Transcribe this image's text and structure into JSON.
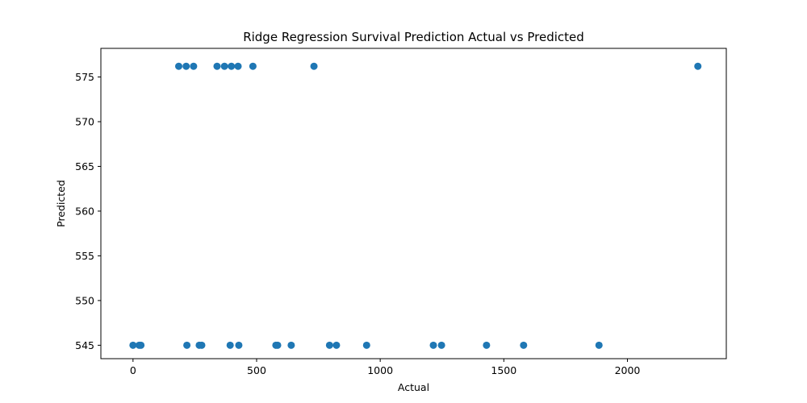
{
  "chart_data": {
    "type": "scatter",
    "title": "Ridge Regression Survival Prediction Actual vs Predicted",
    "xlabel": "Actual",
    "ylabel": "Predicted",
    "xlim": [
      -130,
      2400
    ],
    "ylim": [
      543.5,
      578.2
    ],
    "xticks": [
      0,
      500,
      1000,
      1500,
      2000
    ],
    "yticks": [
      545,
      550,
      555,
      560,
      565,
      570,
      575
    ],
    "grid": false,
    "marker_color": "#1f77b4",
    "points": [
      {
        "x": 185,
        "y": 576.2
      },
      {
        "x": 215,
        "y": 576.2
      },
      {
        "x": 245,
        "y": 576.2
      },
      {
        "x": 340,
        "y": 576.2
      },
      {
        "x": 370,
        "y": 576.2
      },
      {
        "x": 398,
        "y": 576.2
      },
      {
        "x": 425,
        "y": 576.2
      },
      {
        "x": 485,
        "y": 576.2
      },
      {
        "x": 732,
        "y": 576.2
      },
      {
        "x": 2285,
        "y": 576.2
      },
      {
        "x": 0,
        "y": 545.0
      },
      {
        "x": 25,
        "y": 545.0
      },
      {
        "x": 32,
        "y": 545.0
      },
      {
        "x": 218,
        "y": 545.0
      },
      {
        "x": 268,
        "y": 545.0
      },
      {
        "x": 278,
        "y": 545.0
      },
      {
        "x": 393,
        "y": 545.0
      },
      {
        "x": 428,
        "y": 545.0
      },
      {
        "x": 578,
        "y": 545.0
      },
      {
        "x": 585,
        "y": 545.0
      },
      {
        "x": 640,
        "y": 545.0
      },
      {
        "x": 795,
        "y": 545.0
      },
      {
        "x": 823,
        "y": 545.0
      },
      {
        "x": 945,
        "y": 545.0
      },
      {
        "x": 1215,
        "y": 545.0
      },
      {
        "x": 1248,
        "y": 545.0
      },
      {
        "x": 1430,
        "y": 545.0
      },
      {
        "x": 1580,
        "y": 545.0
      },
      {
        "x": 1885,
        "y": 545.0
      }
    ]
  }
}
